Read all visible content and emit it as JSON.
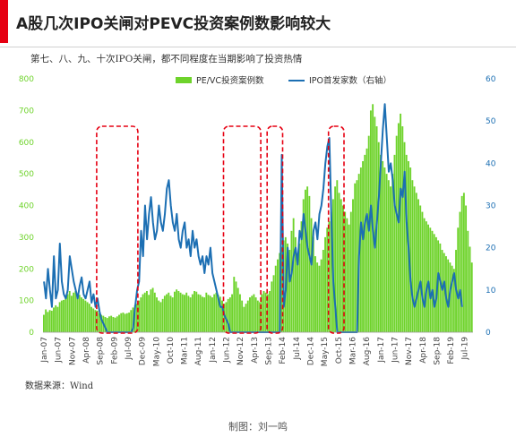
{
  "title": "A股几次IPO关闸对PEVC投资案例数影响较大",
  "subtitle": "第七、八、九、十次IPO关闸，都不同程度在当期影响了投资热情",
  "source": "数据来源：Wind",
  "credit": "制图：刘一鸣",
  "colors": {
    "bar": "#6ed32b",
    "line": "#1c6fb3",
    "left_axis": "#6ed32b",
    "right_axis": "#1c6fb3",
    "highlight": "#e60012",
    "accent": "#e60012"
  },
  "chart_data": {
    "type": "bar",
    "title": "",
    "xlabel": "",
    "ylabel": "",
    "ylim": [
      0,
      800
    ],
    "y2lim": [
      0,
      60
    ],
    "yticks": [
      0,
      100,
      200,
      300,
      400,
      500,
      600,
      700,
      800
    ],
    "y2ticks": [
      0,
      10,
      20,
      30,
      40,
      50,
      60
    ],
    "xticks": [
      "Jan-07",
      "Jun-07",
      "Nov-07",
      "Apr-08",
      "Sep-08",
      "Feb-09",
      "Jul-09",
      "Dec-09",
      "May-10",
      "Oct-10",
      "Mar-11",
      "Aug-11",
      "Jan-12",
      "Jun-12",
      "Nov-12",
      "Apr-13",
      "Sep-13",
      "Feb-14",
      "Jul-14",
      "Dec-14",
      "May-15",
      "Oct-15",
      "Mar-16",
      "Aug-16",
      "Jan-17",
      "Jun-17",
      "Nov-17",
      "Apr-18",
      "Sep-18",
      "Feb-19",
      "Jul-19"
    ],
    "legend_position": "top",
    "grid": false,
    "series": [
      {
        "name": "PE/VC投资案例数",
        "type": "bar",
        "axis": "left",
        "values": [
          55,
          72,
          64,
          70,
          68,
          78,
          85,
          80,
          95,
          100,
          102,
          110,
          120,
          130,
          115,
          125,
          130,
          120,
          118,
          110,
          105,
          100,
          95,
          90,
          80,
          75,
          70,
          68,
          60,
          55,
          52,
          48,
          45,
          50,
          52,
          48,
          46,
          50,
          55,
          60,
          62,
          58,
          60,
          62,
          70,
          78,
          85,
          90,
          100,
          110,
          120,
          125,
          130,
          118,
          135,
          140,
          125,
          110,
          100,
          95,
          105,
          115,
          120,
          125,
          115,
          110,
          128,
          135,
          130,
          125,
          120,
          118,
          125,
          115,
          110,
          120,
          130,
          128,
          120,
          118,
          112,
          110,
          125,
          118,
          115,
          110,
          120,
          125,
          118,
          112,
          100,
          90,
          95,
          105,
          110,
          120,
          175,
          160,
          140,
          120,
          100,
          80,
          90,
          100,
          110,
          115,
          120,
          110,
          100,
          95,
          120,
          130,
          125,
          120,
          130,
          160,
          180,
          210,
          230,
          250,
          270,
          290,
          300,
          280,
          260,
          320,
          360,
          300,
          250,
          280,
          350,
          420,
          450,
          460,
          430,
          360,
          300,
          240,
          220,
          210,
          230,
          260,
          300,
          330,
          350,
          380,
          420,
          460,
          480,
          440,
          420,
          400,
          380,
          360,
          340,
          380,
          420,
          470,
          480,
          500,
          520,
          540,
          560,
          580,
          620,
          700,
          720,
          680,
          650,
          600,
          560,
          540,
          520,
          500,
          480,
          460,
          500,
          560,
          620,
          660,
          690,
          650,
          600,
          560,
          540,
          520,
          480,
          460,
          440,
          420,
          400,
          380,
          360,
          350,
          340,
          330,
          320,
          310,
          300,
          290,
          280,
          260,
          250,
          240,
          230,
          220,
          210,
          200,
          260,
          330,
          380,
          430,
          440,
          400,
          320,
          270,
          220
        ]
      },
      {
        "name": "IPO首发家数（右轴）",
        "type": "line",
        "axis": "right",
        "values": [
          12,
          8,
          15,
          10,
          6,
          18,
          8,
          10,
          21,
          12,
          9,
          8,
          10,
          18,
          15,
          12,
          10,
          8,
          11,
          13,
          9,
          8,
          10,
          12,
          7,
          9,
          6,
          8,
          5,
          3,
          2,
          1,
          0,
          0,
          0,
          0,
          0,
          0,
          0,
          0,
          0,
          0,
          0,
          0,
          0,
          1,
          6,
          10,
          12,
          24,
          18,
          30,
          22,
          28,
          32,
          26,
          22,
          24,
          30,
          26,
          24,
          28,
          34,
          36,
          30,
          26,
          24,
          28,
          22,
          20,
          24,
          26,
          20,
          22,
          18,
          24,
          20,
          22,
          18,
          16,
          18,
          14,
          18,
          16,
          20,
          14,
          12,
          10,
          8,
          6,
          6,
          4,
          3,
          2,
          0,
          0,
          0,
          0,
          0,
          0,
          0,
          0,
          0,
          0,
          0,
          0,
          0,
          0,
          0,
          0,
          0,
          0,
          0,
          0,
          0,
          0,
          0,
          0,
          0,
          0,
          42,
          6,
          10,
          20,
          12,
          14,
          18,
          20,
          16,
          24,
          22,
          28,
          24,
          20,
          18,
          16,
          24,
          26,
          22,
          28,
          30,
          34,
          40,
          44,
          46,
          28,
          12,
          6,
          0,
          0,
          0,
          0,
          0,
          0,
          0,
          0,
          0,
          0,
          0,
          18,
          26,
          22,
          26,
          28,
          24,
          30,
          24,
          20,
          26,
          32,
          40,
          48,
          54,
          46,
          38,
          40,
          36,
          30,
          28,
          26,
          34,
          32,
          38,
          26,
          20,
          12,
          8,
          6,
          8,
          10,
          12,
          8,
          6,
          10,
          12,
          8,
          10,
          6,
          8,
          14,
          12,
          10,
          12,
          8,
          6,
          10,
          12,
          14,
          10,
          8,
          10,
          6
        ]
      }
    ],
    "highlight_windows": [
      {
        "label": "",
        "start_index": 28,
        "end_index": 46
      },
      {
        "label": "",
        "start_index": 92,
        "end_index": 108
      },
      {
        "label": "",
        "start_index": 114,
        "end_index": 119
      },
      {
        "label": "",
        "start_index": 145,
        "end_index": 150
      }
    ]
  }
}
